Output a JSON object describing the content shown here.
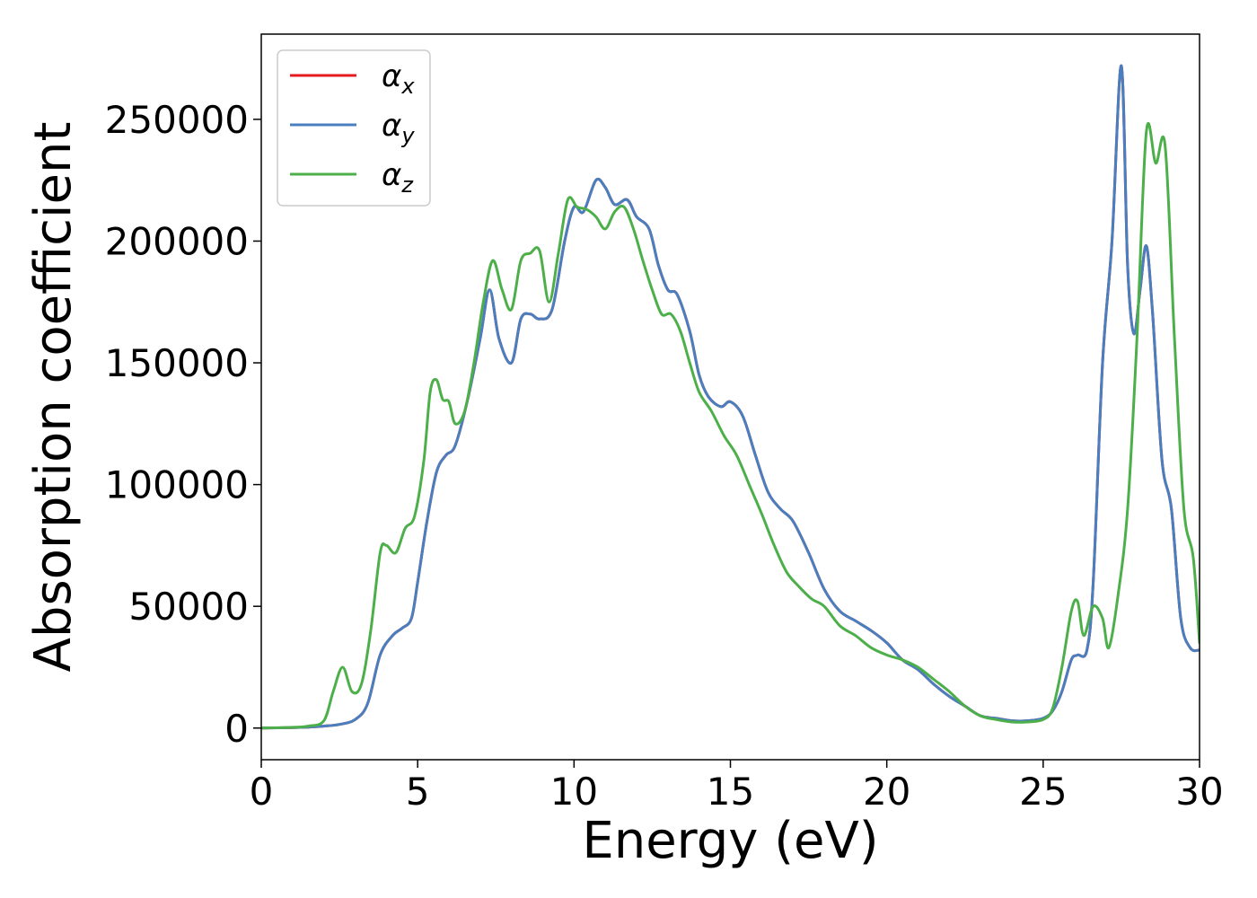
{
  "chart_data": {
    "type": "line",
    "xlabel": "Energy (eV)",
    "ylabel": "Absorption coefficient",
    "xlim": [
      0,
      30
    ],
    "ylim": [
      -13000,
      285000
    ],
    "xticks": [
      0,
      5,
      10,
      15,
      20,
      25,
      30
    ],
    "yticks": [
      0,
      50000,
      100000,
      150000,
      200000,
      250000
    ],
    "grid": false,
    "legend_position": "top-left",
    "series": [
      {
        "name": "α",
        "subscript": "x",
        "color": "#e41a1c",
        "x": [
          0,
          1,
          1.5,
          2,
          2.5,
          3,
          3.4,
          3.8,
          4.2,
          4.5,
          4.8,
          5,
          5.3,
          5.6,
          5.9,
          6.2,
          6.6,
          7,
          7.3,
          7.6,
          8,
          8.3,
          8.6,
          8.9,
          9.3,
          9.7,
          10,
          10.3,
          10.7,
          11,
          11.3,
          11.7,
          12,
          12.4,
          12.7,
          13,
          13.3,
          13.7,
          14,
          14.3,
          14.7,
          15,
          15.4,
          15.8,
          16.2,
          16.6,
          17,
          17.5,
          18,
          18.5,
          19,
          19.5,
          20,
          20.5,
          21,
          21.5,
          22,
          22.5,
          23,
          23.5,
          24,
          24.5,
          25,
          25.3,
          25.6,
          25.9,
          26.1,
          26.4,
          26.6,
          26.9,
          27.2,
          27.5,
          27.7,
          27.9,
          28.1,
          28.3,
          28.5,
          28.8,
          29.1,
          29.4,
          29.7,
          30
        ],
        "y": [
          0,
          200,
          400,
          800,
          1500,
          3500,
          10000,
          30000,
          38000,
          41000,
          45000,
          60000,
          85000,
          105000,
          112000,
          116000,
          135000,
          160000,
          180000,
          160000,
          150000,
          168000,
          170000,
          168000,
          172000,
          200000,
          214000,
          212000,
          225000,
          222000,
          215000,
          217000,
          210000,
          205000,
          190000,
          180000,
          178000,
          163000,
          145000,
          136000,
          132000,
          134000,
          128000,
          112000,
          97000,
          90000,
          85000,
          72000,
          57000,
          48000,
          44000,
          40000,
          35000,
          28000,
          24000,
          18000,
          13000,
          9000,
          5000,
          4000,
          3000,
          3000,
          4000,
          7000,
          15000,
          28000,
          30000,
          32000,
          60000,
          150000,
          200000,
          272000,
          190000,
          162000,
          180000,
          198000,
          170000,
          110000,
          90000,
          45000,
          33000,
          32000
        ]
      },
      {
        "name": "α",
        "subscript": "y",
        "color": "#4a7fbf",
        "x": [
          0,
          1,
          1.5,
          2,
          2.5,
          3,
          3.4,
          3.8,
          4.2,
          4.5,
          4.8,
          5,
          5.3,
          5.6,
          5.9,
          6.2,
          6.6,
          7,
          7.3,
          7.6,
          8,
          8.3,
          8.6,
          8.9,
          9.3,
          9.7,
          10,
          10.3,
          10.7,
          11,
          11.3,
          11.7,
          12,
          12.4,
          12.7,
          13,
          13.3,
          13.7,
          14,
          14.3,
          14.7,
          15,
          15.4,
          15.8,
          16.2,
          16.6,
          17,
          17.5,
          18,
          18.5,
          19,
          19.5,
          20,
          20.5,
          21,
          21.5,
          22,
          22.5,
          23,
          23.5,
          24,
          24.5,
          25,
          25.3,
          25.6,
          25.9,
          26.1,
          26.4,
          26.6,
          26.9,
          27.2,
          27.5,
          27.7,
          27.9,
          28.1,
          28.3,
          28.5,
          28.8,
          29.1,
          29.4,
          29.7,
          30
        ],
        "y": [
          0,
          200,
          400,
          800,
          1500,
          3500,
          10000,
          30000,
          38000,
          41000,
          45000,
          60000,
          85000,
          105000,
          112000,
          116000,
          135000,
          160000,
          180000,
          160000,
          150000,
          168000,
          170000,
          168000,
          172000,
          200000,
          214000,
          212000,
          225000,
          222000,
          215000,
          217000,
          210000,
          205000,
          190000,
          180000,
          178000,
          163000,
          145000,
          136000,
          132000,
          134000,
          128000,
          112000,
          97000,
          90000,
          85000,
          72000,
          57000,
          48000,
          44000,
          40000,
          35000,
          28000,
          24000,
          18000,
          13000,
          9000,
          5000,
          4000,
          3000,
          3000,
          4000,
          7000,
          15000,
          28000,
          30000,
          32000,
          60000,
          150000,
          200000,
          272000,
          190000,
          162000,
          180000,
          198000,
          170000,
          110000,
          90000,
          45000,
          33000,
          32000
        ]
      },
      {
        "name": "α",
        "subscript": "z",
        "color": "#4daf4a",
        "x": [
          0,
          1,
          1.5,
          2,
          2.3,
          2.6,
          2.9,
          3.2,
          3.5,
          3.8,
          4,
          4.3,
          4.6,
          4.9,
          5.2,
          5.4,
          5.6,
          5.8,
          6,
          6.2,
          6.5,
          6.8,
          7.1,
          7.4,
          7.7,
          8,
          8.3,
          8.6,
          8.9,
          9.2,
          9.5,
          9.8,
          10.1,
          10.4,
          10.7,
          11,
          11.3,
          11.6,
          11.9,
          12.2,
          12.5,
          12.8,
          13.1,
          13.4,
          13.7,
          14,
          14.4,
          14.8,
          15.2,
          15.6,
          16,
          16.4,
          16.8,
          17.2,
          17.6,
          18,
          18.5,
          19,
          19.5,
          20,
          20.5,
          21,
          21.5,
          22,
          22.5,
          23,
          23.5,
          24,
          24.5,
          25,
          25.3,
          25.6,
          25.9,
          26.1,
          26.3,
          26.6,
          26.9,
          27.1,
          27.4,
          27.7,
          28,
          28.3,
          28.6,
          28.9,
          29.2,
          29.5,
          29.8,
          30
        ],
        "y": [
          0,
          300,
          800,
          3000,
          15000,
          25000,
          15000,
          18000,
          40000,
          72000,
          75000,
          72000,
          82000,
          87000,
          110000,
          138000,
          143000,
          135000,
          134000,
          125000,
          130000,
          150000,
          175000,
          192000,
          180000,
          172000,
          192000,
          195000,
          196000,
          175000,
          195000,
          217000,
          214000,
          213000,
          210000,
          205000,
          212000,
          214000,
          205000,
          192000,
          180000,
          170000,
          170000,
          163000,
          150000,
          138000,
          130000,
          120000,
          112000,
          100000,
          88000,
          75000,
          64000,
          58000,
          53000,
          50000,
          42000,
          38000,
          33000,
          30000,
          28000,
          25000,
          20000,
          15000,
          9000,
          5000,
          3500,
          2500,
          2500,
          3500,
          8000,
          25000,
          48000,
          52000,
          38000,
          50000,
          45000,
          33000,
          55000,
          90000,
          160000,
          245000,
          232000,
          239000,
          160000,
          90000,
          70000,
          35000
        ]
      }
    ]
  }
}
